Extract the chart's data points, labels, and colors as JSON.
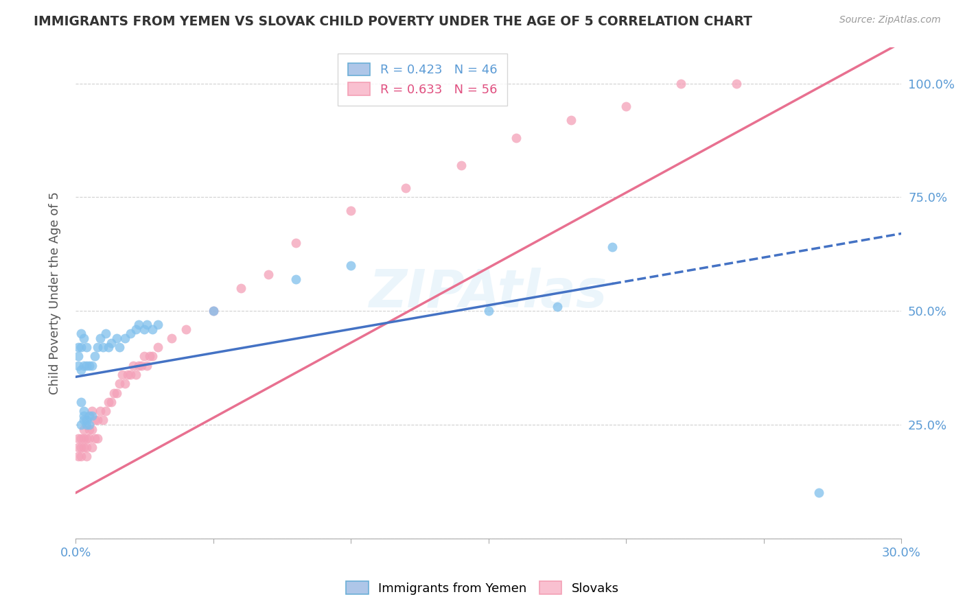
{
  "title": "IMMIGRANTS FROM YEMEN VS SLOVAK CHILD POVERTY UNDER THE AGE OF 5 CORRELATION CHART",
  "source": "Source: ZipAtlas.com",
  "ylabel": "Child Poverty Under the Age of 5",
  "xlim": [
    0,
    0.3
  ],
  "ylim": [
    0.0,
    1.08
  ],
  "series1_color": "#7fbfec",
  "series2_color": "#f4a0b8",
  "trend1_color": "#4472c4",
  "trend2_color": "#e87090",
  "watermark": "ZIPAtlas",
  "background_color": "#ffffff",
  "grid_color": "#d0d0d0",
  "yemen_x": [
    0.001,
    0.001,
    0.001,
    0.002,
    0.002,
    0.002,
    0.002,
    0.002,
    0.003,
    0.003,
    0.003,
    0.003,
    0.003,
    0.004,
    0.004,
    0.004,
    0.004,
    0.005,
    0.005,
    0.005,
    0.006,
    0.006,
    0.007,
    0.008,
    0.009,
    0.01,
    0.011,
    0.012,
    0.013,
    0.015,
    0.016,
    0.018,
    0.02,
    0.022,
    0.023,
    0.025,
    0.026,
    0.028,
    0.03,
    0.05,
    0.08,
    0.1,
    0.15,
    0.175,
    0.195,
    0.27
  ],
  "yemen_y": [
    0.38,
    0.4,
    0.42,
    0.25,
    0.3,
    0.37,
    0.42,
    0.45,
    0.26,
    0.27,
    0.28,
    0.38,
    0.44,
    0.25,
    0.26,
    0.38,
    0.42,
    0.25,
    0.27,
    0.38,
    0.27,
    0.38,
    0.4,
    0.42,
    0.44,
    0.42,
    0.45,
    0.42,
    0.43,
    0.44,
    0.42,
    0.44,
    0.45,
    0.46,
    0.47,
    0.46,
    0.47,
    0.46,
    0.47,
    0.5,
    0.57,
    0.6,
    0.5,
    0.51,
    0.64,
    0.1
  ],
  "slovak_x": [
    0.001,
    0.001,
    0.001,
    0.002,
    0.002,
    0.002,
    0.003,
    0.003,
    0.003,
    0.004,
    0.004,
    0.004,
    0.005,
    0.005,
    0.006,
    0.006,
    0.006,
    0.007,
    0.007,
    0.008,
    0.008,
    0.009,
    0.01,
    0.011,
    0.012,
    0.013,
    0.014,
    0.015,
    0.016,
    0.017,
    0.018,
    0.019,
    0.02,
    0.021,
    0.022,
    0.023,
    0.024,
    0.025,
    0.026,
    0.027,
    0.028,
    0.03,
    0.035,
    0.04,
    0.05,
    0.06,
    0.07,
    0.08,
    0.1,
    0.12,
    0.14,
    0.16,
    0.18,
    0.2,
    0.22,
    0.24
  ],
  "slovak_y": [
    0.18,
    0.2,
    0.22,
    0.18,
    0.2,
    0.22,
    0.2,
    0.22,
    0.24,
    0.18,
    0.2,
    0.22,
    0.22,
    0.24,
    0.2,
    0.24,
    0.28,
    0.22,
    0.26,
    0.22,
    0.26,
    0.28,
    0.26,
    0.28,
    0.3,
    0.3,
    0.32,
    0.32,
    0.34,
    0.36,
    0.34,
    0.36,
    0.36,
    0.38,
    0.36,
    0.38,
    0.38,
    0.4,
    0.38,
    0.4,
    0.4,
    0.42,
    0.44,
    0.46,
    0.5,
    0.55,
    0.58,
    0.65,
    0.72,
    0.77,
    0.82,
    0.88,
    0.92,
    0.95,
    1.0,
    1.0
  ],
  "trend1_slope": 1.05,
  "trend1_intercept": 0.355,
  "trend2_slope": 3.3,
  "trend2_intercept": 0.1,
  "trend1_data_xmax": 0.195
}
